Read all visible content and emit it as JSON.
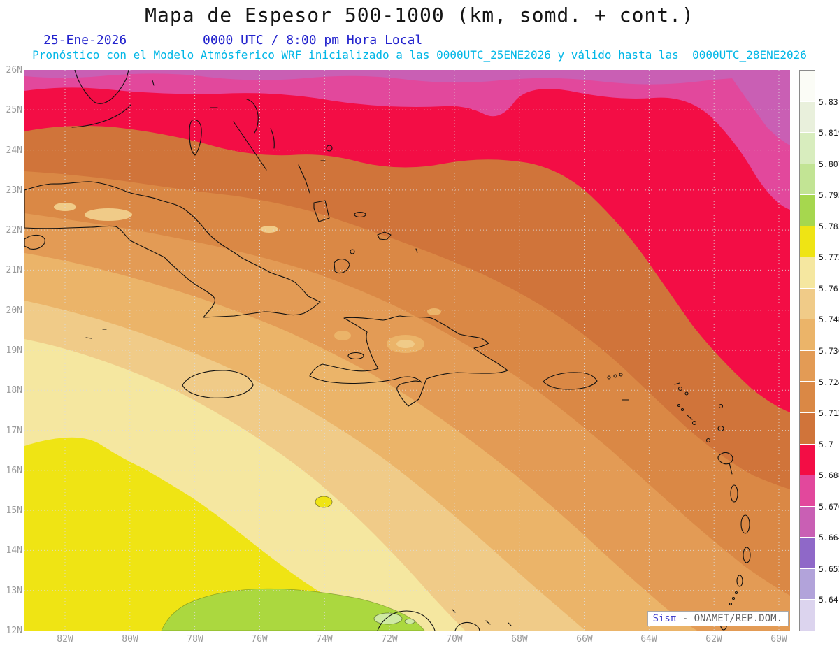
{
  "header": {
    "title": "Mapa de Espesor 500-1000 (km, somd. + cont.)",
    "date": "25-Ene-2026",
    "time": "0000 UTC / 8:00 pm Hora Local",
    "forecast_line": "Pronóstico con el Modelo Atmósferico WRF inicializado a las 0000UTC_25ENE2026 y válido hasta las  0000UTC_28ENE2026"
  },
  "map": {
    "lat_labels": [
      "26N",
      "25N",
      "24N",
      "23N",
      "22N",
      "21N",
      "20N",
      "19N",
      "18N",
      "17N",
      "16N",
      "15N",
      "14N",
      "13N",
      "12N"
    ],
    "lon_labels": [
      "82W",
      "80W",
      "78W",
      "76W",
      "74W",
      "72W",
      "70W",
      "68W",
      "66W",
      "64W",
      "62W",
      "60W"
    ]
  },
  "colorbar": {
    "labels": [
      "5.831",
      "5.819",
      "5.807",
      "5.795",
      "5.783",
      "5.772",
      "5.76",
      "5.748",
      "5.736",
      "5.724",
      "5.712",
      "5.7",
      "5.688",
      "5.676",
      "5.664",
      "5.652",
      "5.64"
    ],
    "cell_colors": [
      "#fbfcf6",
      "#e9f0dc",
      "#d8edbe",
      "#c2e494",
      "#a6d74e",
      "#efe414",
      "#f5e7a0",
      "#f0cb88",
      "#ebb469",
      "#e39b55",
      "#da8845",
      "#d0743a",
      "#f30d45",
      "#e2489c",
      "#c95fb4",
      "#8f68c8",
      "#b2a3da",
      "#dcd4ee"
    ]
  },
  "colors": {
    "purple_pink": "#c95fb4",
    "magenta": "#e2489c",
    "red": "#f30d45",
    "orange_dark": "#d0743a",
    "orange": "#da8845",
    "orange_mid": "#e39b55",
    "orange_light": "#ebb469",
    "tan": "#f0cb88",
    "pale_yellow": "#f5e7a0",
    "yellow": "#efe414",
    "green": "#abd83f",
    "green_light": "#cfeaa2"
  },
  "watermark": {
    "brand": "Sisπ",
    "text": " - ONAMET/REP.DOM."
  },
  "chart_data": {
    "type": "heatmap",
    "title": "Mapa de Espesor 500-1000 (km, somd. + cont.)",
    "variable": "Espesor 500-1000 hPa",
    "units": "km",
    "model": "WRF",
    "init": "0000UTC_25ENE2026",
    "valid": "0000UTC_28ENE2026",
    "extent": {
      "lat_n": [
        12,
        26
      ],
      "lon_w": [
        82,
        60
      ]
    },
    "levels": [
      5.64,
      5.652,
      5.664,
      5.676,
      5.688,
      5.7,
      5.712,
      5.724,
      5.736,
      5.748,
      5.76,
      5.772,
      5.783,
      5.795,
      5.807,
      5.819,
      5.831
    ],
    "legend_position": "right",
    "grid": "dotted, 1° lat / 2° lon",
    "pattern": "Thickness bands run diagonally NW-SE: highest values (~5.78-5.79 km, yellow/green) in the southwest near 12-15N 74-82W with a green maximum blob at the bottom center; values decrease toward the northeast through pale yellow, tan and orange bands over Cuba/Hispaniola (~5.72-5.76), a red band (5.688-5.7) across ~24N sweeping down the eastern edge, and magenta/pink (<5.688) along the northern edge and northeast corner."
  }
}
